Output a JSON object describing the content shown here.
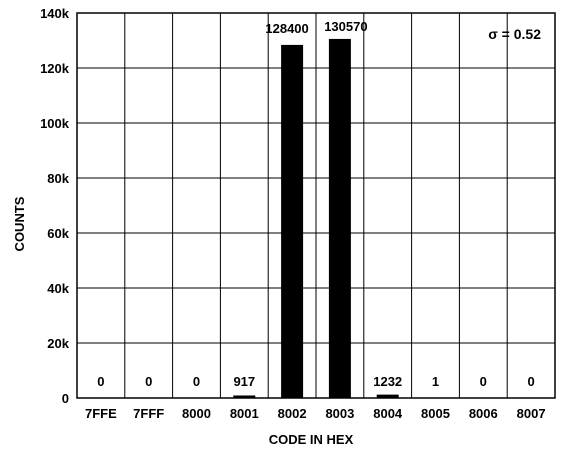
{
  "chart_data": {
    "type": "bar",
    "categories": [
      "7FFE",
      "7FFF",
      "8000",
      "8001",
      "8002",
      "8003",
      "8004",
      "8005",
      "8006",
      "8007"
    ],
    "values": [
      0,
      0,
      0,
      917,
      128400,
      130570,
      1232,
      1,
      0,
      0
    ],
    "data_labels": [
      "0",
      "0",
      "0",
      "917",
      "128400",
      "130570",
      "1232",
      "1",
      "0",
      "0"
    ],
    "xlabel": "CODE IN HEX",
    "ylabel": "COUNTS",
    "ylim": [
      0,
      140000
    ],
    "yticks": [
      {
        "value": 0,
        "label": "0"
      },
      {
        "value": 20000,
        "label": "20k"
      },
      {
        "value": 40000,
        "label": "40k"
      },
      {
        "value": 60000,
        "label": "60k"
      },
      {
        "value": 80000,
        "label": "80k"
      },
      {
        "value": 100000,
        "label": "100k"
      },
      {
        "value": 120000,
        "label": "120k"
      },
      {
        "value": 140000,
        "label": "140k"
      }
    ],
    "annotation": "σ = 0.52",
    "grid": true,
    "colors": {
      "bar": "#000000",
      "grid": "#000000"
    }
  }
}
